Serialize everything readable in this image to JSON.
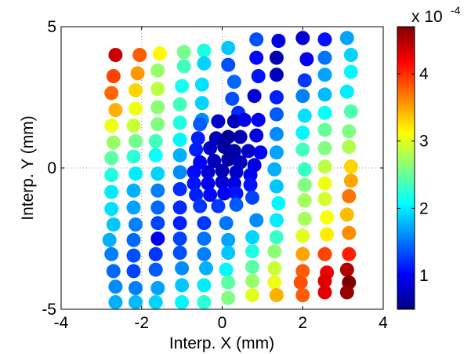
{
  "chart_data": {
    "type": "scatter",
    "xlabel": "Interp. X (mm)",
    "ylabel": "Interp. Y (mm)",
    "xlim": [
      -4,
      4
    ],
    "ylim": [
      -5,
      5
    ],
    "xticks": [
      "-4",
      "-2",
      "0",
      "2",
      "4"
    ],
    "yticks": [
      "-5",
      "0",
      "5"
    ],
    "grid": "dotted lines at x=-2, 0, 2 and y=0",
    "colorbar": {
      "colormap": "jet",
      "range": [
        0.5,
        4.7
      ],
      "ticks": [
        "1",
        "2",
        "3",
        "4"
      ],
      "exponent_label": "x 10",
      "exponent_power": "-4"
    },
    "points": [
      [
        -2.65,
        4.0,
        4.4
      ],
      [
        -2.05,
        4.0,
        3.8
      ],
      [
        -1.55,
        4.05,
        3.15
      ],
      [
        -0.95,
        4.1,
        2.55
      ],
      [
        -0.45,
        4.15,
        2.2
      ],
      [
        0.15,
        4.25,
        1.85
      ],
      [
        0.85,
        4.55,
        1.35
      ],
      [
        1.4,
        4.5,
        0.9
      ],
      [
        2.0,
        4.6,
        0.85
      ],
      [
        2.55,
        4.55,
        1.1
      ],
      [
        3.1,
        4.6,
        1.7
      ],
      [
        -2.7,
        3.25,
        3.9
      ],
      [
        -2.1,
        3.35,
        3.55
      ],
      [
        -1.6,
        3.45,
        2.7
      ],
      [
        -0.95,
        3.6,
        2.35
      ],
      [
        -0.45,
        3.7,
        1.9
      ],
      [
        0.15,
        3.65,
        1.35
      ],
      [
        0.85,
        3.9,
        1.05
      ],
      [
        1.35,
        3.9,
        0.7
      ],
      [
        2.1,
        3.85,
        0.95
      ],
      [
        2.55,
        3.9,
        1.5
      ],
      [
        3.2,
        4.0,
        1.9
      ],
      [
        -2.75,
        2.65,
        3.75
      ],
      [
        -2.15,
        2.75,
        3.3
      ],
      [
        -1.6,
        2.8,
        2.85
      ],
      [
        -1.0,
        2.9,
        2.15
      ],
      [
        -0.5,
        2.95,
        1.95
      ],
      [
        0.3,
        3.05,
        1.45
      ],
      [
        0.9,
        3.25,
        1.1
      ],
      [
        1.35,
        3.3,
        0.75
      ],
      [
        2.05,
        3.1,
        1.25
      ],
      [
        2.55,
        3.3,
        1.7
      ],
      [
        3.2,
        3.4,
        2.05
      ],
      [
        -2.65,
        2.05,
        3.45
      ],
      [
        -2.15,
        2.1,
        3.05
      ],
      [
        -1.6,
        2.15,
        2.65
      ],
      [
        -1.05,
        2.25,
        2.35
      ],
      [
        -0.5,
        2.3,
        1.9
      ],
      [
        0.25,
        2.45,
        1.35
      ],
      [
        0.8,
        2.55,
        0.85
      ],
      [
        1.35,
        2.5,
        1.15
      ],
      [
        2.0,
        2.55,
        1.55
      ],
      [
        2.55,
        2.6,
        1.8
      ],
      [
        3.1,
        2.7,
        2.0
      ],
      [
        -2.75,
        1.5,
        3.05
      ],
      [
        -2.2,
        1.5,
        2.9
      ],
      [
        -1.6,
        1.55,
        2.6
      ],
      [
        -1.05,
        1.6,
        2.2
      ],
      [
        -0.5,
        1.7,
        1.6
      ],
      [
        0.4,
        1.95,
        1.2
      ],
      [
        1.35,
        1.9,
        1.4
      ],
      [
        2.05,
        1.85,
        1.95
      ],
      [
        2.55,
        1.95,
        2.1
      ],
      [
        3.2,
        2.0,
        2.4
      ],
      [
        -2.7,
        0.9,
        2.7
      ],
      [
        -2.15,
        0.95,
        2.55
      ],
      [
        -1.65,
        0.95,
        2.35
      ],
      [
        -1.05,
        1.0,
        2.05
      ],
      [
        1.35,
        1.2,
        1.6
      ],
      [
        2.0,
        1.25,
        2.05
      ],
      [
        2.55,
        1.35,
        2.5
      ],
      [
        3.15,
        1.3,
        2.6
      ],
      [
        -2.75,
        0.35,
        2.45
      ],
      [
        -2.2,
        0.4,
        2.25
      ],
      [
        -1.65,
        0.45,
        2.1
      ],
      [
        -1.05,
        0.45,
        1.75
      ],
      [
        1.35,
        0.55,
        1.7
      ],
      [
        2.0,
        0.65,
        2.35
      ],
      [
        2.55,
        0.7,
        2.6
      ],
      [
        3.15,
        0.75,
        2.8
      ],
      [
        -2.75,
        -0.25,
        2.2
      ],
      [
        -2.15,
        -0.2,
        2.0
      ],
      [
        -1.6,
        -0.2,
        1.9
      ],
      [
        -1.05,
        -0.15,
        1.6
      ],
      [
        1.3,
        -0.05,
        1.75
      ],
      [
        2.05,
        -0.05,
        2.3
      ],
      [
        2.55,
        0.05,
        2.85
      ],
      [
        3.2,
        0.05,
        3.3
      ],
      [
        -2.75,
        -0.85,
        2.0
      ],
      [
        -2.2,
        -0.8,
        1.75
      ],
      [
        -1.6,
        -0.8,
        1.55
      ],
      [
        -1.05,
        -0.75,
        1.2
      ],
      [
        1.35,
        -0.65,
        1.85
      ],
      [
        2.05,
        -0.6,
        2.6
      ],
      [
        2.55,
        -0.55,
        3.05
      ],
      [
        3.2,
        -0.45,
        3.5
      ],
      [
        -2.75,
        -1.45,
        1.95
      ],
      [
        -2.2,
        -1.4,
        1.7
      ],
      [
        -1.6,
        -1.4,
        1.45
      ],
      [
        -1.05,
        -1.4,
        1.2
      ],
      [
        1.4,
        -1.25,
        2.05
      ],
      [
        2.05,
        -1.15,
        2.75
      ],
      [
        2.55,
        -1.1,
        2.95
      ],
      [
        3.15,
        -1.0,
        3.7
      ],
      [
        -2.7,
        -2.0,
        1.85
      ],
      [
        -2.15,
        -2.0,
        1.55
      ],
      [
        -1.6,
        -1.95,
        1.3
      ],
      [
        -1.05,
        -1.95,
        1.15
      ],
      [
        -0.45,
        -1.95,
        1.25
      ],
      [
        0.1,
        -1.95,
        1.5
      ],
      [
        0.85,
        -1.85,
        1.6
      ],
      [
        1.35,
        -1.85,
        2.0
      ],
      [
        2.05,
        -1.8,
        2.75
      ],
      [
        2.6,
        -1.75,
        3.1
      ],
      [
        3.1,
        -1.65,
        3.4
      ],
      [
        -2.8,
        -2.55,
        1.75
      ],
      [
        -2.2,
        -2.55,
        1.45
      ],
      [
        -1.6,
        -2.5,
        0.95
      ],
      [
        -1.05,
        -2.5,
        1.3
      ],
      [
        -0.45,
        -2.5,
        1.5
      ],
      [
        0.15,
        -2.55,
        1.7
      ],
      [
        0.75,
        -2.45,
        1.9
      ],
      [
        1.35,
        -2.45,
        2.3
      ],
      [
        2.0,
        -2.4,
        3.0
      ],
      [
        2.6,
        -2.35,
        3.2
      ],
      [
        3.15,
        -2.3,
        3.6
      ],
      [
        -2.75,
        -3.05,
        1.55
      ],
      [
        -2.2,
        -3.1,
        1.35
      ],
      [
        -1.65,
        -3.05,
        1.25
      ],
      [
        -1.05,
        -3.0,
        1.35
      ],
      [
        -0.45,
        -3.05,
        1.55
      ],
      [
        0.15,
        -3.0,
        1.85
      ],
      [
        0.75,
        -2.95,
        2.2
      ],
      [
        1.3,
        -2.95,
        2.65
      ],
      [
        2.0,
        -3.05,
        3.5
      ],
      [
        2.55,
        -3.05,
        3.9
      ],
      [
        3.15,
        -3.05,
        4.05
      ],
      [
        -2.7,
        -3.65,
        1.45
      ],
      [
        -2.2,
        -3.65,
        1.3
      ],
      [
        -1.65,
        -3.6,
        1.4
      ],
      [
        -1.0,
        -3.55,
        1.6
      ],
      [
        -0.4,
        -3.55,
        1.75
      ],
      [
        0.1,
        -3.6,
        2.05
      ],
      [
        0.75,
        -3.5,
        2.45
      ],
      [
        1.3,
        -3.55,
        2.9
      ],
      [
        2.0,
        -3.65,
        3.8
      ],
      [
        2.6,
        -3.7,
        4.25
      ],
      [
        3.1,
        -3.6,
        4.5
      ],
      [
        -2.65,
        -4.2,
        1.6
      ],
      [
        -2.15,
        -4.25,
        1.55
      ],
      [
        -1.6,
        -4.25,
        1.7
      ],
      [
        -1.0,
        -4.15,
        1.85
      ],
      [
        -0.45,
        -4.15,
        2.0
      ],
      [
        0.15,
        -4.05,
        2.45
      ],
      [
        0.75,
        -4.0,
        2.7
      ],
      [
        1.3,
        -4.05,
        3.05
      ],
      [
        1.95,
        -4.05,
        3.85
      ],
      [
        2.55,
        -4.0,
        4.3
      ],
      [
        3.15,
        -4.05,
        4.7
      ],
      [
        -2.65,
        -4.75,
        1.75
      ],
      [
        -2.15,
        -4.75,
        1.8
      ],
      [
        -1.65,
        -4.75,
        1.9
      ],
      [
        -1.0,
        -4.75,
        2.05
      ],
      [
        -0.45,
        -4.75,
        2.25
      ],
      [
        0.15,
        -4.6,
        2.6
      ],
      [
        0.75,
        -4.5,
        3.0
      ],
      [
        1.35,
        -4.5,
        3.45
      ],
      [
        2.0,
        -4.5,
        3.8
      ],
      [
        2.55,
        -4.4,
        4.3
      ],
      [
        3.1,
        -4.4,
        4.6
      ],
      [
        -0.55,
        1.55,
        1.4
      ],
      [
        -0.1,
        1.65,
        0.8
      ],
      [
        0.3,
        1.65,
        0.75
      ],
      [
        0.55,
        1.7,
        0.95
      ],
      [
        0.9,
        1.7,
        1.0
      ],
      [
        -0.6,
        1.05,
        1.15
      ],
      [
        -0.15,
        1.05,
        0.75
      ],
      [
        0.15,
        1.1,
        0.6
      ],
      [
        0.45,
        1.1,
        0.7
      ],
      [
        0.85,
        1.15,
        0.9
      ],
      [
        -0.65,
        0.65,
        1.15
      ],
      [
        -0.3,
        0.7,
        0.8
      ],
      [
        0.05,
        0.75,
        0.6
      ],
      [
        0.3,
        0.6,
        0.65
      ],
      [
        0.65,
        0.6,
        0.8
      ],
      [
        0.95,
        0.55,
        1.0
      ],
      [
        -0.55,
        0.2,
        1.0
      ],
      [
        -0.2,
        0.25,
        0.75
      ],
      [
        0.15,
        0.3,
        0.65
      ],
      [
        0.45,
        0.2,
        0.75
      ],
      [
        0.8,
        0.1,
        0.9
      ],
      [
        -0.7,
        -0.15,
        1.05
      ],
      [
        -0.35,
        -0.15,
        0.85
      ],
      [
        0.0,
        -0.1,
        0.7
      ],
      [
        0.35,
        -0.15,
        0.8
      ],
      [
        0.7,
        -0.25,
        1.0
      ],
      [
        -0.7,
        -0.55,
        1.1
      ],
      [
        -0.35,
        -0.55,
        0.95
      ],
      [
        0.0,
        -0.5,
        0.85
      ],
      [
        0.3,
        -0.55,
        0.9
      ],
      [
        0.7,
        -0.6,
        1.1
      ],
      [
        -0.65,
        -0.95,
        1.15
      ],
      [
        -0.3,
        -0.95,
        1.05
      ],
      [
        0.05,
        -0.9,
        1.0
      ],
      [
        0.35,
        -0.9,
        1.1
      ],
      [
        0.75,
        -1.05,
        1.3
      ],
      [
        -0.55,
        -1.35,
        1.25
      ],
      [
        -0.1,
        -1.35,
        1.25
      ],
      [
        0.35,
        -1.3,
        1.4
      ]
    ]
  }
}
